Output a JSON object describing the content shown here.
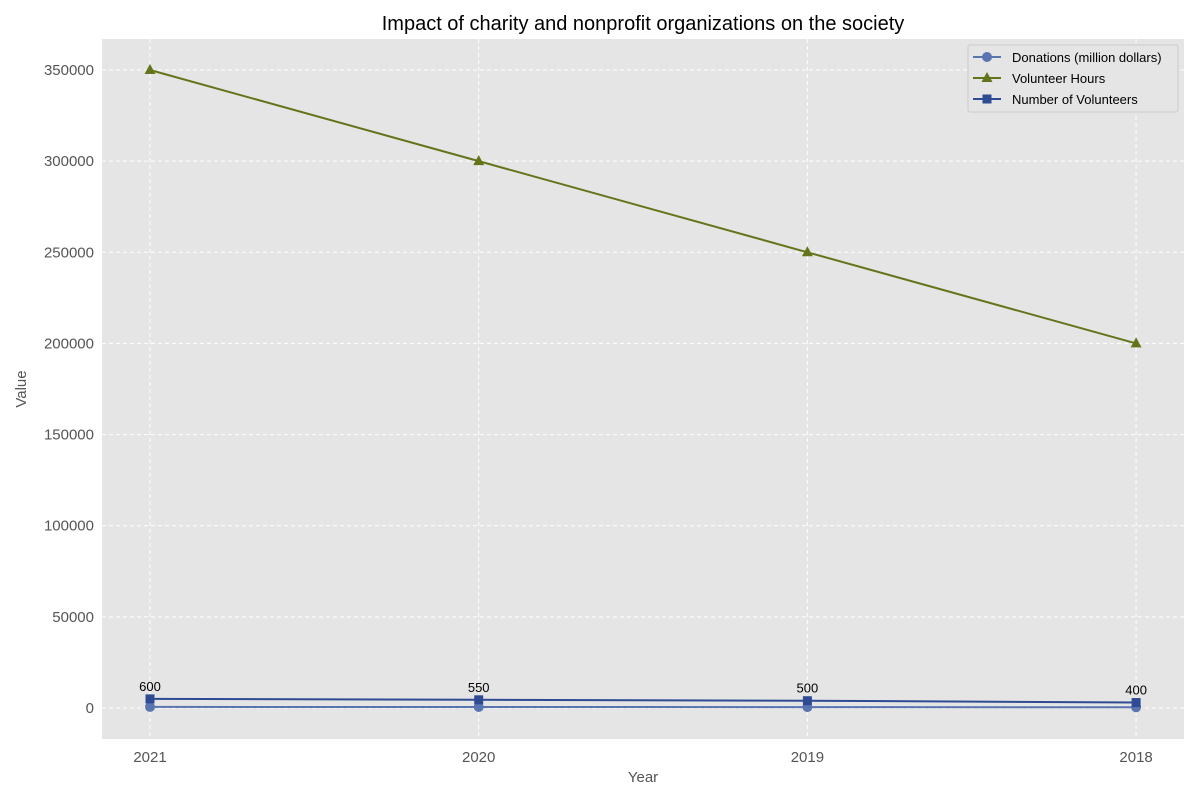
{
  "chart_data": {
    "type": "line",
    "title": "Impact of charity and nonprofit organizations on the society",
    "xlabel": "Year",
    "ylabel": "Value",
    "categories": [
      "2021",
      "2020",
      "2019",
      "2018"
    ],
    "ylim": [
      -17000,
      367000
    ],
    "yticks": [
      0,
      50000,
      100000,
      150000,
      200000,
      250000,
      300000,
      350000
    ],
    "grid": true,
    "legend_position": "top-right",
    "series": [
      {
        "name": "Donations (million dollars)",
        "values": [
          600,
          550,
          500,
          400
        ],
        "color": "#5a74b0",
        "marker": "circle"
      },
      {
        "name": "Volunteer Hours",
        "values": [
          350000,
          300000,
          250000,
          200000
        ],
        "color": "#63751a",
        "marker": "triangle"
      },
      {
        "name": "Number of Volunteers",
        "values": [
          5000,
          4500,
          4000,
          3000
        ],
        "color": "#2f4b94",
        "marker": "square"
      }
    ],
    "data_labels": [
      "600",
      "550",
      "500",
      "400"
    ]
  }
}
